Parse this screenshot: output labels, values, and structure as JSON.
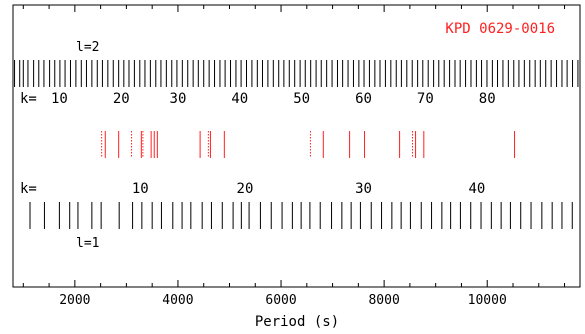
{
  "chart_data": {
    "type": "scatter",
    "title": "KPD 0629-0016",
    "xlabel": "Period (s)",
    "ylabel": "",
    "xlim": [
      800,
      11800
    ],
    "x_ticks": [
      2000,
      4000,
      6000,
      8000,
      10000
    ],
    "grid": false,
    "colors": {
      "model": "#000000",
      "observed": "#ff2020"
    },
    "model_l2": {
      "label": "l=2",
      "k_prefix": "k=",
      "periods": [
        830,
        930,
        1000,
        1090,
        1200,
        1300,
        1400,
        1510,
        1610,
        1710,
        1810,
        1915,
        2020,
        2125,
        2225,
        2330,
        2435,
        2535,
        2640,
        2745,
        2850,
        2950,
        3050,
        3155,
        3260,
        3360,
        3465,
        3570,
        3670,
        3775,
        3880,
        3980,
        4085,
        4190,
        4295,
        4395,
        4500,
        4605,
        4710,
        4815,
        4915,
        5020,
        5125,
        5225,
        5330,
        5435,
        5540,
        5640,
        5745,
        5850,
        5955,
        6055,
        6160,
        6265,
        6370,
        6470,
        6575,
        6680,
        6780,
        6885,
        6990,
        7095,
        7195,
        7300,
        7405,
        7510,
        7610,
        7715,
        7820,
        7920,
        8025,
        8130,
        8235,
        8335,
        8440,
        8545,
        8650,
        8750,
        8855,
        8960,
        9060,
        9165,
        9270,
        9375,
        9475,
        9580,
        9685,
        9790,
        9890,
        9995,
        10100,
        10200,
        10305,
        10410,
        10515,
        10615,
        10720,
        10825,
        10930,
        11030,
        11135,
        11240,
        11345,
        11450,
        11550,
        11655,
        11760
      ],
      "k_labels": [
        {
          "k": "10",
          "period": 1700
        },
        {
          "k": "20",
          "period": 2900
        },
        {
          "k": "30",
          "period": 4000
        },
        {
          "k": "40",
          "period": 5200
        },
        {
          "k": "50",
          "period": 6400
        },
        {
          "k": "60",
          "period": 7600
        },
        {
          "k": "70",
          "period": 8800
        },
        {
          "k": "80",
          "period": 10000
        }
      ]
    },
    "observed": {
      "solid": [
        2590,
        2850,
        3290,
        3480,
        3540,
        3600,
        4430,
        4630,
        4900,
        6820,
        7330,
        7620,
        8300,
        8610,
        8770,
        10530
      ],
      "dotted": [
        2520,
        3100,
        3320,
        4590,
        6570,
        8550
      ]
    },
    "model_l1": {
      "label": "l=1",
      "k_prefix": "k=",
      "periods": [
        1130,
        1410,
        1700,
        1900,
        2060,
        2330,
        2510,
        2860,
        3120,
        3300,
        3500,
        3680,
        3900,
        4080,
        4250,
        4470,
        4650,
        4860,
        5070,
        5230,
        5380,
        5600,
        5810,
        6020,
        6220,
        6390,
        6560,
        6760,
        6980,
        7180,
        7360,
        7540,
        7750,
        7950,
        8150,
        8330,
        8510,
        8720,
        8920,
        9120,
        9290,
        9480,
        9680,
        9880,
        10080,
        10270,
        10450,
        10650,
        10850,
        11060,
        11260,
        11450,
        11650
      ],
      "k_labels": [
        {
          "k": "10",
          "period": 3270
        },
        {
          "k": "20",
          "period": 5300
        },
        {
          "k": "30",
          "period": 7600
        },
        {
          "k": "40",
          "period": 9800
        }
      ]
    }
  }
}
